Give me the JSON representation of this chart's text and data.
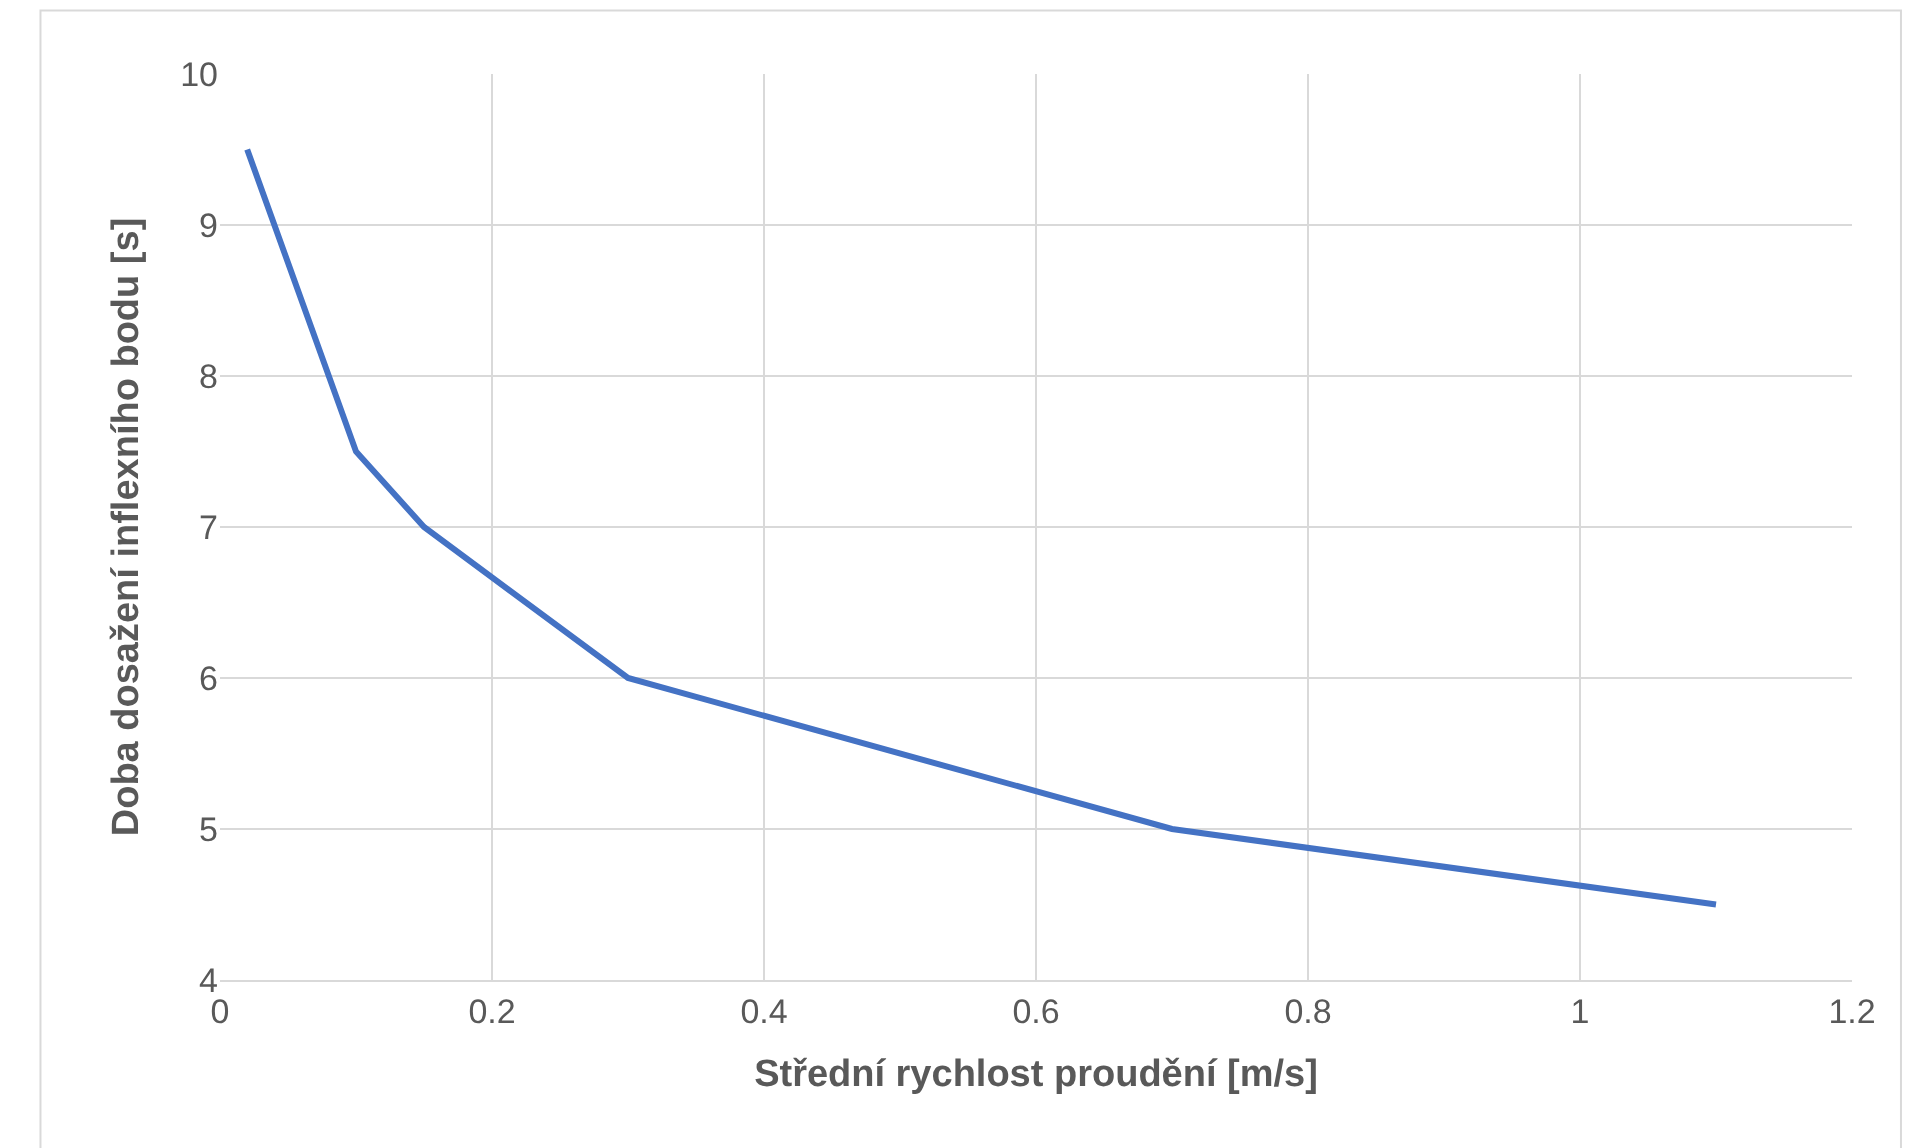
{
  "chart_data": {
    "type": "line",
    "xlabel": "Střední rychlost proudění [m/s]",
    "ylabel": "Doba dosažení inflexního bodu [s]",
    "x": [
      0.02,
      0.1,
      0.15,
      0.3,
      0.7,
      1.1
    ],
    "series": [
      {
        "color": "#4472c4",
        "values": [
          9.5,
          7.5,
          7.0,
          6.0,
          5.0,
          4.5
        ]
      }
    ],
    "xlim": [
      0,
      1.2
    ],
    "xticks": [
      0,
      {
        "value": 0.2,
        "label": "0.2"
      },
      {
        "value": 0.4,
        "label": "0.4"
      },
      {
        "value": 0.6,
        "label": "0.6"
      },
      {
        "value": 0.8,
        "label": "0.8"
      },
      1,
      {
        "value": 1.2,
        "label": "1.2"
      }
    ],
    "ylim": [
      4,
      10
    ],
    "yticks": [
      4,
      5,
      6,
      7,
      8,
      9,
      10
    ],
    "grid": true,
    "marker": "none",
    "line_style": "solid"
  }
}
